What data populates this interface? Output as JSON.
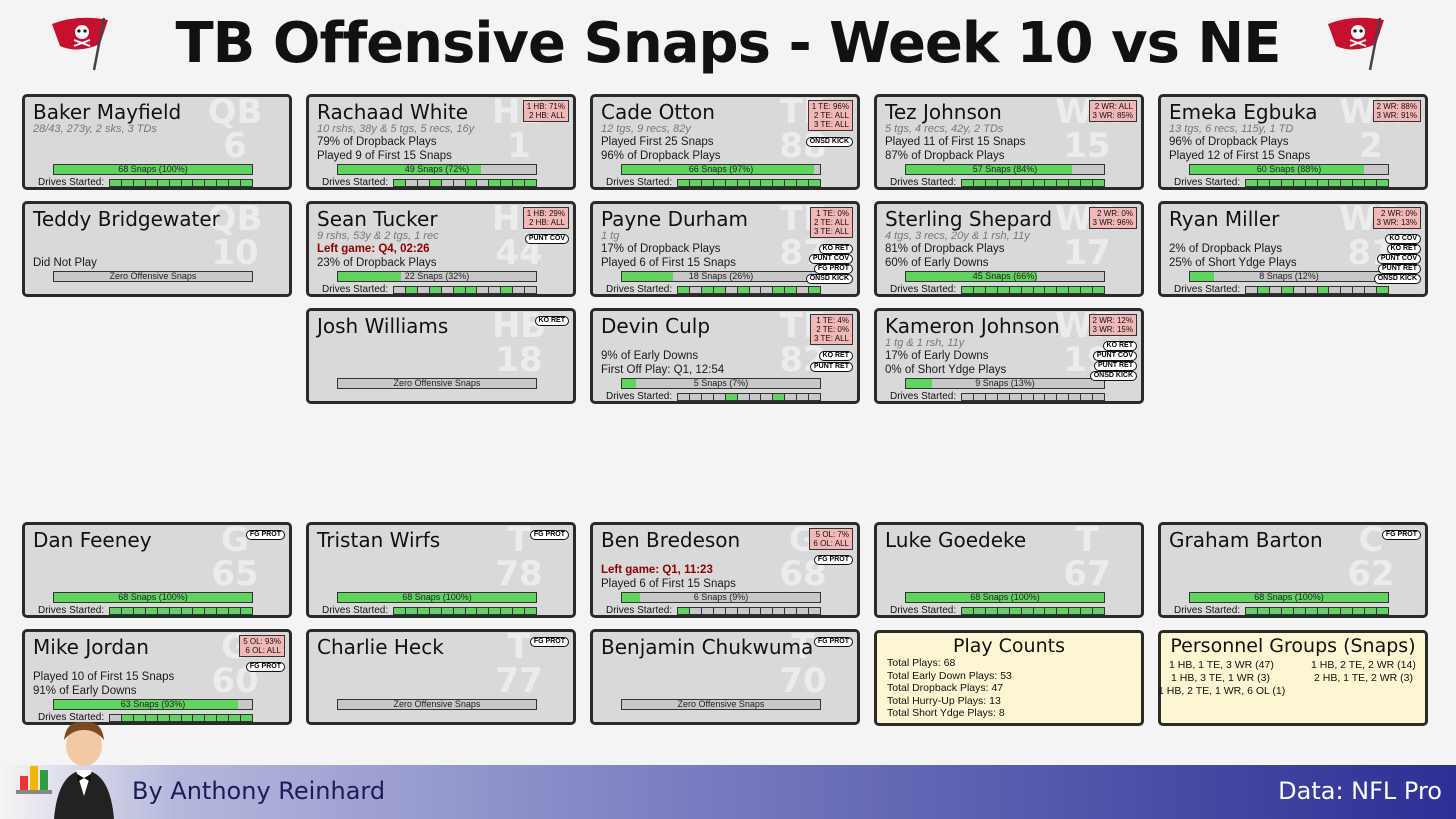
{
  "title": "TB Offensive Snaps - Week 10 vs NE",
  "labels": {
    "drives_started": "Drives Started:",
    "zero_snaps": "Zero Offensive Snaps"
  },
  "colors": {
    "snap_fill": "#5fd45f",
    "card_bg": "#d9d9d9",
    "personnel_box": "#f2b8b8",
    "info_bg": "#fdf6d3",
    "left_game": "#8b0000"
  },
  "icons": {
    "team_logo": "buccaneers-flag-icon",
    "author_avatar": "butler-chart-icon"
  },
  "players": [
    {
      "name": "Baker Mayfield",
      "pos": "QB",
      "num": "6",
      "stat": "28/43, 273y, 2 sks, 3 TDs",
      "lines": [],
      "snaps": "68 Snaps (100%)",
      "pct": 1.0,
      "drives": [
        1,
        1,
        1,
        1,
        1,
        1,
        1,
        1,
        1,
        1,
        1,
        1
      ],
      "pbox": [],
      "pills": []
    },
    {
      "name": "Rachaad White",
      "pos": "HB",
      "num": "1",
      "stat": "10 rshs, 38y & 5 tgs, 5 recs, 16y",
      "lines": [
        "79% of Dropback Plays",
        "Played 9 of First 15 Snaps"
      ],
      "snaps": "49 Snaps (72%)",
      "pct": 0.72,
      "drives": [
        1,
        0,
        0,
        1,
        0,
        0,
        1,
        0,
        1,
        1,
        1,
        1
      ],
      "pbox": [
        "1 HB: 71%",
        "2 HB: ALL"
      ],
      "pills": []
    },
    {
      "name": "Cade Otton",
      "pos": "TE",
      "num": "88",
      "stat": "12 tgs, 9 recs, 82y",
      "lines": [
        "Played First 25 Snaps",
        "96% of Dropback Plays"
      ],
      "snaps": "66 Snaps (97%)",
      "pct": 0.97,
      "drives": [
        1,
        1,
        1,
        1,
        1,
        1,
        1,
        1,
        1,
        1,
        1,
        1
      ],
      "pbox": [
        "1 TE: 96%",
        "2 TE: ALL",
        "3 TE: ALL"
      ],
      "pills": [
        "ONSD KICK"
      ]
    },
    {
      "name": "Tez Johnson",
      "pos": "WR",
      "num": "15",
      "stat": "5 tgs, 4 recs, 42y, 2 TDs",
      "lines": [
        "Played 11 of First 15 Snaps",
        "87% of Dropback Plays"
      ],
      "snaps": "57 Snaps (84%)",
      "pct": 0.84,
      "drives": [
        1,
        1,
        1,
        1,
        1,
        1,
        1,
        1,
        1,
        1,
        1,
        1
      ],
      "pbox": [
        "2 WR: ALL",
        "3 WR: 85%"
      ],
      "pills": []
    },
    {
      "name": "Emeka Egbuka",
      "pos": "WR",
      "num": "2",
      "stat": "13 tgs, 6 recs, 115y, 1 TD",
      "lines": [
        "96% of Dropback Plays",
        "Played 12 of First 15 Snaps"
      ],
      "snaps": "60 Snaps (88%)",
      "pct": 0.88,
      "drives": [
        1,
        1,
        1,
        1,
        1,
        1,
        1,
        1,
        1,
        1,
        1,
        1
      ],
      "pbox": [
        "2 WR: 88%",
        "3 WR: 91%"
      ],
      "pills": []
    },
    {
      "name": "Teddy Bridgewater",
      "pos": "QB",
      "num": "10",
      "stat": "",
      "lines": [
        "",
        "Did Not Play"
      ],
      "snaps": "",
      "pct": 0,
      "drives": null,
      "pbox": [],
      "pills": []
    },
    {
      "name": "Sean Tucker",
      "pos": "HB",
      "num": "44",
      "stat": "9 rshs, 53y & 2 tgs, 1 rec",
      "red": "Left game: Q4, 02:26",
      "lines": [
        "23% of Dropback Plays"
      ],
      "snaps": "22 Snaps (32%)",
      "pct": 0.32,
      "drives": [
        0,
        1,
        0,
        1,
        0,
        1,
        1,
        0,
        0,
        1,
        0,
        0
      ],
      "pbox": [
        "1 HB: 29%",
        "2 HB: ALL"
      ],
      "pills": [
        "PUNT COV"
      ]
    },
    {
      "name": "Payne Durham",
      "pos": "TE",
      "num": "87",
      "stat": "1 tg",
      "lines": [
        "17% of Dropback Plays",
        "Played 6 of First 15 Snaps"
      ],
      "snaps": "18 Snaps (26%)",
      "pct": 0.26,
      "drives": [
        1,
        0,
        1,
        1,
        0,
        1,
        0,
        0,
        1,
        1,
        0,
        1
      ],
      "pbox": [
        "1 TE: 0%",
        "2 TE: ALL",
        "3 TE: ALL"
      ],
      "pills": [
        "KO RET",
        "PUNT COV",
        "FG PROT",
        "ONSD KICK"
      ]
    },
    {
      "name": "Sterling Shepard",
      "pos": "WR",
      "num": "17",
      "stat": "4 tgs, 3 recs, 20y & 1 rsh, 11y",
      "lines": [
        "81% of Dropback Plays",
        "60% of Early Downs"
      ],
      "snaps": "45 Snaps (66%)",
      "pct": 0.66,
      "drives": [
        1,
        1,
        1,
        1,
        1,
        1,
        1,
        1,
        1,
        1,
        1,
        1
      ],
      "pbox": [
        "2 WR: 0%",
        "3 WR: 96%"
      ],
      "pills": []
    },
    {
      "name": "Ryan Miller",
      "pos": "WR",
      "num": "81",
      "stat": "",
      "lines": [
        "2% of Dropback Plays",
        "25% of Short Ydge Plays"
      ],
      "snaps": "8 Snaps (12%)",
      "pct": 0.12,
      "drives": [
        0,
        1,
        0,
        1,
        0,
        0,
        1,
        0,
        0,
        0,
        0,
        1
      ],
      "pbox": [
        "2 WR: 0%",
        "3 WR: 13%"
      ],
      "pills": [
        "KO COV",
        "KO RET",
        "PUNT COV",
        "PUNT RET",
        "ONSD KICK"
      ]
    },
    {
      "name": "Josh Williams",
      "pos": "HB",
      "num": "18",
      "stat": "",
      "lines": [],
      "snaps": "",
      "pct": 0,
      "drives": null,
      "pbox": [],
      "pills": [
        "KO RET"
      ]
    },
    {
      "name": "Devin Culp",
      "pos": "TE",
      "num": "82",
      "stat": "",
      "lines": [
        "9% of Early Downs",
        "First Off Play: Q1, 12:54"
      ],
      "snaps": "5 Snaps (7%)",
      "pct": 0.07,
      "drives": [
        0,
        0,
        0,
        0,
        1,
        0,
        0,
        0,
        1,
        0,
        0,
        0
      ],
      "pbox": [
        "1 TE: 4%",
        "2 TE: 0%",
        "3 TE: ALL"
      ],
      "pills": [
        "KO RET",
        "PUNT RET"
      ]
    },
    {
      "name": "Kameron Johnson",
      "pos": "WR",
      "num": "19",
      "stat": "1 tg & 1 rsh, 11y",
      "lines": [
        "17% of Early Downs",
        "0% of Short Ydge Plays"
      ],
      "snaps": "9 Snaps (13%)",
      "pct": 0.13,
      "drives": [
        0,
        0,
        0,
        0,
        0,
        0,
        0,
        0,
        0,
        0,
        0,
        0
      ],
      "pbox": [
        "2 WR: 12%",
        "3 WR: 15%"
      ],
      "pills": [
        "KO RET",
        "PUNT COV",
        "PUNT RET",
        "ONSD KICK"
      ]
    },
    {
      "name": "Dan Feeney",
      "pos": "G",
      "num": "65",
      "stat": "",
      "lines": [],
      "snaps": "68 Snaps (100%)",
      "pct": 1.0,
      "drives": [
        1,
        1,
        1,
        1,
        1,
        1,
        1,
        1,
        1,
        1,
        1,
        1
      ],
      "pbox": [],
      "pills": [
        "FG PROT"
      ]
    },
    {
      "name": "Tristan Wirfs",
      "pos": "T",
      "num": "78",
      "stat": "",
      "lines": [],
      "snaps": "68 Snaps (100%)",
      "pct": 1.0,
      "drives": [
        1,
        1,
        1,
        1,
        1,
        1,
        1,
        1,
        1,
        1,
        1,
        1
      ],
      "pbox": [],
      "pills": [
        "FG PROT"
      ]
    },
    {
      "name": "Ben Bredeson",
      "pos": "G",
      "num": "68",
      "stat": "",
      "red": "Left game: Q1, 11:23",
      "lines": [
        "Played 6 of First 15 Snaps"
      ],
      "snaps": "6 Snaps (9%)",
      "pct": 0.09,
      "drives": [
        1,
        0,
        0,
        0,
        0,
        0,
        0,
        0,
        0,
        0,
        0,
        0
      ],
      "pbox": [
        "5 OL: 7%",
        "6 OL: ALL"
      ],
      "pills": [
        "FG PROT"
      ]
    },
    {
      "name": "Luke Goedeke",
      "pos": "T",
      "num": "67",
      "stat": "",
      "lines": [],
      "snaps": "68 Snaps (100%)",
      "pct": 1.0,
      "drives": [
        1,
        1,
        1,
        1,
        1,
        1,
        1,
        1,
        1,
        1,
        1,
        1
      ],
      "pbox": [],
      "pills": []
    },
    {
      "name": "Graham Barton",
      "pos": "C",
      "num": "62",
      "stat": "",
      "lines": [],
      "snaps": "68 Snaps (100%)",
      "pct": 1.0,
      "drives": [
        1,
        1,
        1,
        1,
        1,
        1,
        1,
        1,
        1,
        1,
        1,
        1
      ],
      "pbox": [],
      "pills": [
        "FG PROT"
      ]
    },
    {
      "name": "Mike Jordan",
      "pos": "G",
      "num": "60",
      "stat": "",
      "lines": [
        "Played 10 of First 15 Snaps",
        "91% of Early Downs"
      ],
      "snaps": "63 Snaps (93%)",
      "pct": 0.93,
      "drives": [
        0,
        1,
        1,
        1,
        1,
        1,
        1,
        1,
        1,
        1,
        1,
        1
      ],
      "pbox": [
        "5 OL: 93%",
        "6 OL: ALL"
      ],
      "pills": [
        "FG PROT"
      ]
    },
    {
      "name": "Charlie Heck",
      "pos": "T",
      "num": "77",
      "stat": "",
      "lines": [],
      "snaps": "",
      "pct": 0,
      "drives": null,
      "pbox": [],
      "pills": [
        "FG PROT"
      ]
    },
    {
      "name": "Benjamin Chukwuma",
      "pos": "T",
      "num": "70",
      "stat": "",
      "lines": [],
      "snaps": "",
      "pct": 0,
      "drives": null,
      "pbox": [],
      "pills": [
        "FG PROT"
      ]
    }
  ],
  "play_counts": {
    "title": "Play Counts",
    "rows": [
      "Total Plays: 68",
      "Total Early Down Plays: 53",
      "Total Dropback Plays: 47",
      "Total Hurry-Up Plays: 13",
      "Total Short Ydge Plays: 8"
    ]
  },
  "personnel": {
    "title": "Personnel Groups (Snaps)",
    "items": [
      "1 HB, 1 TE, 3 WR (47)",
      "1 HB, 2 TE, 2 WR (14)",
      "1 HB, 3 TE, 1 WR (3)",
      "2 HB, 1 TE, 2 WR (3)",
      "1 HB, 2 TE, 1 WR, 6 OL (1)"
    ]
  },
  "footer": {
    "author": "By Anthony Reinhard",
    "source": "Data: NFL Pro"
  }
}
